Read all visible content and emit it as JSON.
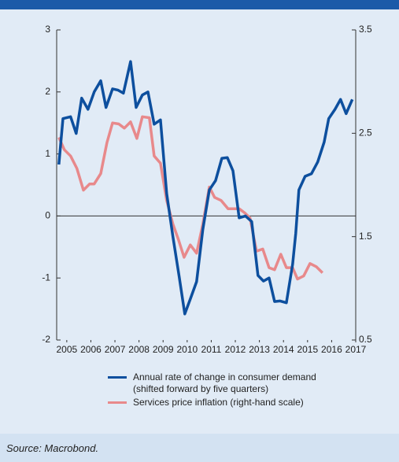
{
  "chart_data": {
    "type": "line",
    "source": "Source: Macrobond.",
    "xlim": [
      2004.58,
      2017
    ],
    "xticks": [
      2005,
      2006,
      2007,
      2008,
      2009,
      2010,
      2011,
      2012,
      2013,
      2014,
      2015,
      2016,
      2017
    ],
    "ylim": [
      -2,
      3
    ],
    "yticks": [
      -2,
      -1,
      0,
      1,
      2,
      3
    ],
    "y2lim": [
      0.5,
      3.5
    ],
    "y2ticks": [
      0.5,
      1.5,
      2.5,
      3.5
    ],
    "series": [
      {
        "name": "Annual rate of change in consumer demand (shifted forward by five quarters)",
        "color": "#0d4f9e",
        "x": [
          2004.67,
          2004.84,
          2005.16,
          2005.39,
          2005.62,
          2005.88,
          2006.14,
          2006.41,
          2006.63,
          2006.9,
          2007.12,
          2007.35,
          2007.65,
          2007.88,
          2008.14,
          2008.37,
          2008.63,
          2008.89,
          2009.15,
          2009.41,
          2009.67,
          2009.9,
          2010.13,
          2010.39,
          2010.65,
          2010.92,
          2011.18,
          2011.44,
          2011.67,
          2011.9,
          2012.16,
          2012.42,
          2012.68,
          2012.94,
          2013.17,
          2013.4,
          2013.63,
          2013.86,
          2014.12,
          2014.38,
          2014.51,
          2014.64,
          2014.9,
          2015.16,
          2015.42,
          2015.69,
          2015.88,
          2016.14,
          2016.37,
          2016.6,
          2016.86
        ],
        "values": [
          0.83,
          1.57,
          1.6,
          1.33,
          1.9,
          1.72,
          2.0,
          2.18,
          1.75,
          2.05,
          2.03,
          1.98,
          2.49,
          1.75,
          1.95,
          2.0,
          1.48,
          1.55,
          0.36,
          -0.34,
          -0.98,
          -1.58,
          -1.34,
          -1.06,
          -0.22,
          0.42,
          0.57,
          0.93,
          0.94,
          0.73,
          -0.03,
          0,
          -0.09,
          -0.96,
          -1.05,
          -1.0,
          -1.38,
          -1.37,
          -1.4,
          -0.78,
          -0.28,
          0.42,
          0.64,
          0.68,
          0.87,
          1.19,
          1.57,
          1.72,
          1.88,
          1.65,
          1.88
        ]
      },
      {
        "name": "Services price inflation (right-hand scale)",
        "color": "#e8898b",
        "axis": "y2",
        "x": [
          2004.67,
          2004.9,
          2005.16,
          2005.42,
          2005.69,
          2005.95,
          2006.14,
          2006.41,
          2006.67,
          2006.9,
          2007.16,
          2007.39,
          2007.65,
          2007.91,
          2008.14,
          2008.43,
          2008.63,
          2008.89,
          2009.15,
          2009.41,
          2009.64,
          2009.87,
          2010.13,
          2010.39,
          2010.65,
          2010.92,
          2011.14,
          2011.41,
          2011.7,
          2011.93,
          2012.16,
          2012.39,
          2012.61,
          2012.88,
          2013.14,
          2013.4,
          2013.63,
          2013.89,
          2014.12,
          2014.38,
          2014.58,
          2014.84,
          2015.1,
          2015.36,
          2015.62
        ],
        "values": [
          2.46,
          2.34,
          2.28,
          2.16,
          1.95,
          2.01,
          2.01,
          2.11,
          2.41,
          2.6,
          2.59,
          2.55,
          2.61,
          2.45,
          2.66,
          2.65,
          2.28,
          2.21,
          1.85,
          1.62,
          1.47,
          1.3,
          1.42,
          1.34,
          1.62,
          1.98,
          1.88,
          1.85,
          1.77,
          1.77,
          1.77,
          1.73,
          1.68,
          1.36,
          1.38,
          1.2,
          1.18,
          1.33,
          1.2,
          1.2,
          1.09,
          1.12,
          1.24,
          1.21,
          1.15
        ]
      }
    ]
  }
}
